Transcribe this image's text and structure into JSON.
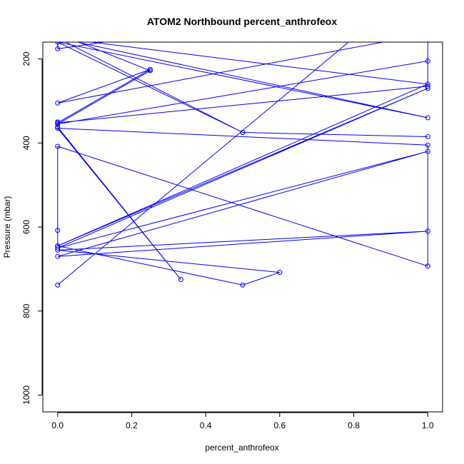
{
  "chart_data": {
    "type": "line",
    "title": "ATOM2 Northbound percent_anthrofeox",
    "xlabel": "percent_anthrofeox",
    "ylabel": "Pressure (mbar)",
    "xlim": [
      -0.04,
      1.04
    ],
    "ylim": [
      1040,
      160
    ],
    "y_axis_reversed": true,
    "x_ticks": [
      0.0,
      0.2,
      0.4,
      0.6,
      0.8,
      1.0
    ],
    "x_tick_labels": [
      "0.0",
      "0.2",
      "0.4",
      "0.6",
      "0.8",
      "1.0"
    ],
    "y_ticks": [
      200,
      400,
      600,
      800,
      1000
    ],
    "y_tick_labels": [
      "200",
      "400",
      "600",
      "800",
      "1000"
    ],
    "grid": false,
    "legend": "none",
    "series": [
      {
        "color": "#0000ff",
        "marker": "open-circle",
        "points": [
          [
            0.0,
            738
          ],
          [
            0.82,
            135
          ],
          [
            1.0,
            120
          ],
          [
            1.0,
            265
          ],
          [
            0.0,
            352
          ],
          [
            0.25,
            225
          ],
          [
            0.0,
            305
          ],
          [
            1.0,
            140
          ],
          [
            1.0,
            205
          ],
          [
            0.0,
            355
          ],
          [
            0.25,
            228
          ],
          [
            0.0,
            140
          ],
          [
            0.0,
            176
          ],
          [
            0.165,
            155
          ],
          [
            0.0,
            150
          ],
          [
            0.5,
            375
          ],
          [
            1.0,
            385
          ],
          [
            0.5,
            375
          ],
          [
            0.0,
            160
          ],
          [
            1.0,
            340
          ],
          [
            0.0,
            150
          ],
          [
            1.0,
            260
          ],
          [
            0.0,
            645
          ],
          [
            1.0,
            270
          ],
          [
            0.0,
            650
          ],
          [
            1.0,
            420
          ],
          [
            0.0,
            670
          ],
          [
            1.0,
            610
          ],
          [
            0.0,
            655
          ],
          [
            0.6,
            708
          ],
          [
            0.5,
            738
          ],
          [
            0.0,
            645
          ],
          [
            0.0,
            608
          ],
          [
            0.0,
            408
          ],
          [
            1.0,
            693
          ],
          [
            1.0,
            405
          ],
          [
            0.0,
            365
          ],
          [
            0.333,
            725
          ],
          [
            0.0,
            362
          ],
          [
            0.0,
            350
          ]
        ]
      }
    ]
  }
}
